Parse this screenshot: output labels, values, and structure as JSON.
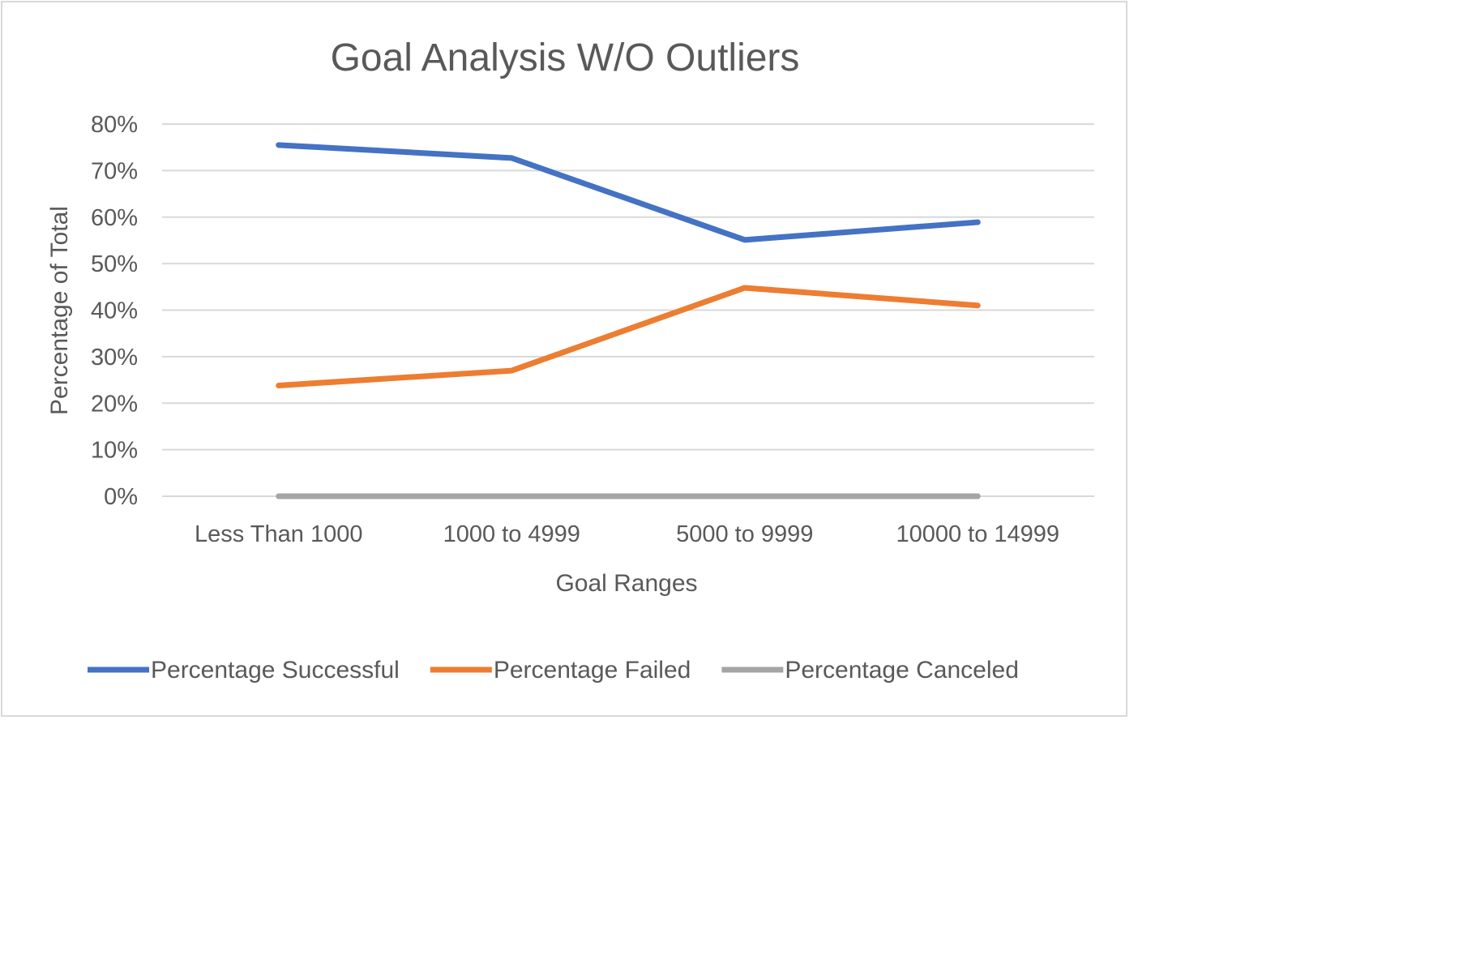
{
  "chart_data": {
    "type": "line",
    "title": "Goal Analysis W/O Outliers",
    "xlabel": "Goal Ranges",
    "ylabel": "Percentage of Total",
    "categories": [
      "Less Than 1000",
      "1000 to 4999",
      "5000 to 9999",
      "10000 to 14999"
    ],
    "ylim": [
      0,
      0.8
    ],
    "yticks": [
      0,
      0.1,
      0.2,
      0.3,
      0.4,
      0.5,
      0.6,
      0.7,
      0.8
    ],
    "ytick_labels": [
      "0%",
      "10%",
      "20%",
      "30%",
      "40%",
      "50%",
      "60%",
      "70%",
      "80%"
    ],
    "grid": true,
    "legend": "bottom",
    "series": [
      {
        "name": "Percentage Successful",
        "color": "#4472c4",
        "values": [
          0.755,
          0.727,
          0.551,
          0.589
        ]
      },
      {
        "name": "Percentage Failed",
        "color": "#ed7d31",
        "values": [
          0.238,
          0.27,
          0.448,
          0.41
        ]
      },
      {
        "name": "Percentage Canceled",
        "color": "#a5a5a5",
        "values": [
          0,
          0,
          0,
          0
        ]
      }
    ]
  }
}
